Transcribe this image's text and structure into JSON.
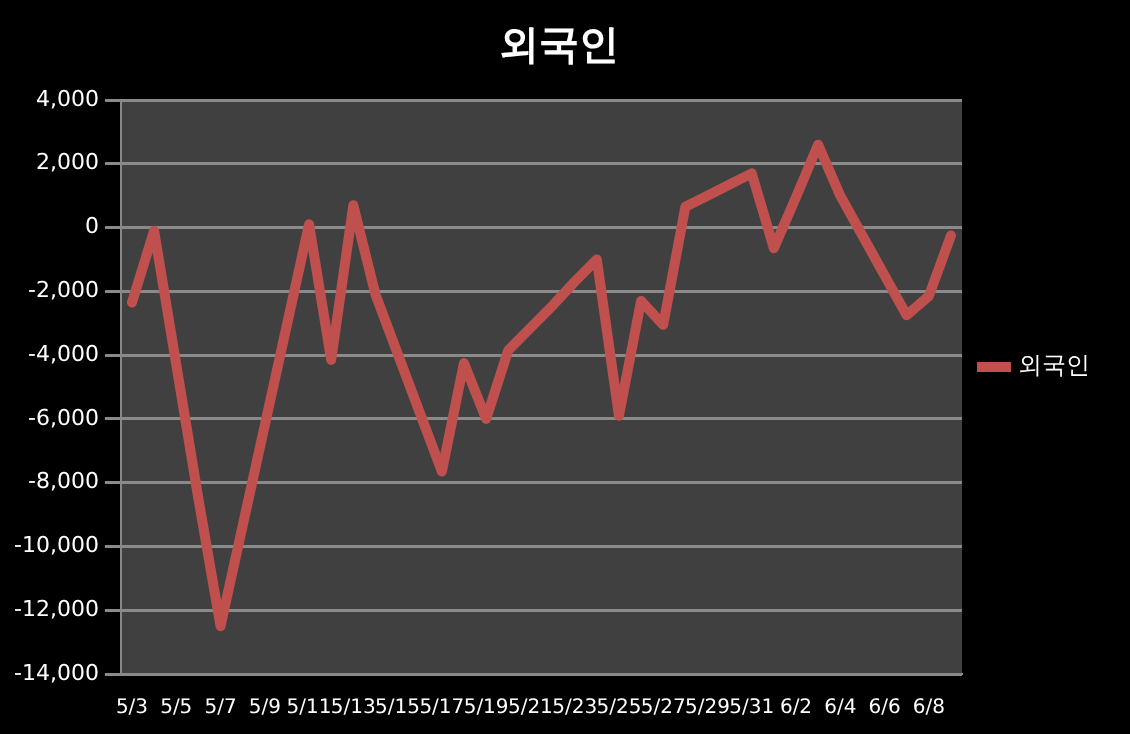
{
  "chart_data": {
    "type": "line",
    "title": "외국인",
    "categories": [
      "5/3",
      null,
      "5/5",
      null,
      "5/7",
      null,
      "5/9",
      null,
      "5/11",
      null,
      "5/13",
      null,
      "5/15",
      null,
      "5/17",
      null,
      "5/19",
      null,
      "5/21",
      null,
      "5/23",
      null,
      "5/25",
      null,
      "5/27",
      null,
      "5/29",
      null,
      "5/31",
      null,
      "6/2",
      null,
      "6/4",
      null,
      "6/6",
      null,
      "6/8",
      null
    ],
    "series": [
      {
        "name": "외국인",
        "color": "#c0504d",
        "values": [
          -2350,
          -100,
          -4300,
          -8500,
          -12500,
          -9350,
          -6200,
          -3050,
          100,
          -4150,
          700,
          -2100,
          -3950,
          -5800,
          -7650,
          -4250,
          -6000,
          -3850,
          -3150,
          -2450,
          -1700,
          -1000,
          -5900,
          -2300,
          -3050,
          650,
          1000,
          1350,
          1700,
          -650,
          950,
          2600,
          1000,
          -250,
          -1500,
          -2750,
          -2150,
          -250
        ]
      }
    ],
    "ylim": [
      -14000,
      4000
    ],
    "yticks": [
      {
        "value": -14000,
        "label": "-14,000"
      },
      {
        "value": -12000,
        "label": "-12,000"
      },
      {
        "value": -10000,
        "label": "-10,000"
      },
      {
        "value": -8000,
        "label": "-8,000"
      },
      {
        "value": -6000,
        "label": "-6,000"
      },
      {
        "value": -4000,
        "label": "-4,000"
      },
      {
        "value": -2000,
        "label": "-2,000"
      },
      {
        "value": 0,
        "label": "0"
      },
      {
        "value": 2000,
        "label": "2,000"
      },
      {
        "value": 4000,
        "label": "4,000"
      }
    ],
    "grid": "y",
    "legend": "right",
    "marker": "none",
    "line_style": "solid"
  }
}
